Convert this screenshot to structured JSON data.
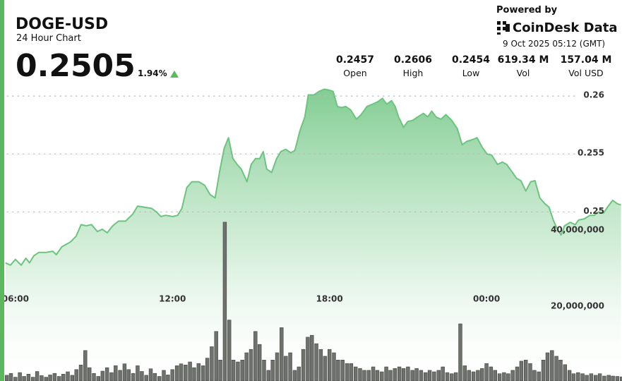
{
  "header": {
    "price": "0.2505",
    "change": "1.94%",
    "powered_by": "Powered by",
    "brand": "CoinDesk Data",
    "timestamp": "9 Oct 2025 05:12 (GMT)",
    "stats": [
      {
        "value": "0.2457",
        "label": "Open"
      },
      {
        "value": "0.2606",
        "label": "High"
      },
      {
        "value": "0.2454",
        "label": "Low"
      },
      {
        "value": "619.34 M",
        "label": "Vol"
      },
      {
        "value": "157.04 M",
        "label": "Vol USD"
      }
    ]
  },
  "chart_data": {
    "type": "line",
    "title": "DOGE-USD",
    "subtitle": "24 Hour Chart",
    "color": "#6cc47f",
    "grid": true,
    "x": [
      5.62,
      5.81,
      6.0,
      6.22,
      6.4,
      6.54,
      6.7,
      6.89,
      7.16,
      7.43,
      7.56,
      7.78,
      8.1,
      8.32,
      8.51,
      8.7,
      8.91,
      9.13,
      9.32,
      9.51,
      9.72,
      9.94,
      10.21,
      10.48,
      10.67,
      10.94,
      11.21,
      11.39,
      11.56,
      11.74,
      12.01,
      12.2,
      12.36,
      12.55,
      12.74,
      13.01,
      13.23,
      13.44,
      13.63,
      13.82,
      13.98,
      14.14,
      14.31,
      14.47,
      14.63,
      14.85,
      15.01,
      15.17,
      15.33,
      15.47,
      15.6,
      15.79,
      15.98,
      16.14,
      16.33,
      16.52,
      16.68,
      16.87,
      17.06,
      17.19,
      17.41,
      17.6,
      17.81,
      18.0,
      18.14,
      18.3,
      18.46,
      18.62,
      18.81,
      19.03,
      19.21,
      19.43,
      19.65,
      19.84,
      20.02,
      20.19,
      20.37,
      20.51,
      20.64,
      20.83,
      20.99,
      21.18,
      21.37,
      21.59,
      21.75,
      21.91,
      22.07,
      22.26,
      22.45,
      22.67,
      22.88,
      23.07,
      23.26,
      23.42,
      23.64,
      23.83,
      24.02,
      24.2,
      24.42,
      24.61,
      24.77,
      24.96,
      25.15,
      25.31,
      25.5,
      25.69,
      25.85,
      26.04,
      26.23,
      26.39,
      26.55,
      26.71,
      26.85,
      26.98,
      27.2,
      27.39,
      27.52,
      27.74,
      27.95,
      28.12,
      28.28,
      28.47,
      28.65,
      28.82,
      29.0,
      29.14
    ],
    "values": [
      0.2456,
      0.2454,
      0.2459,
      0.2454,
      0.246,
      0.2456,
      0.2462,
      0.2465,
      0.2465,
      0.2466,
      0.2463,
      0.247,
      0.2474,
      0.2479,
      0.2489,
      0.2488,
      0.2489,
      0.2483,
      0.2485,
      0.2482,
      0.2488,
      0.2492,
      0.2492,
      0.2498,
      0.2505,
      0.2504,
      0.2503,
      0.25,
      0.2496,
      0.2497,
      0.2496,
      0.2497,
      0.2503,
      0.2521,
      0.2526,
      0.2526,
      0.2523,
      0.2515,
      0.2512,
      0.2537,
      0.2555,
      0.2564,
      0.2546,
      0.2541,
      0.2537,
      0.2526,
      0.2541,
      0.2546,
      0.2546,
      0.2552,
      0.2537,
      0.2534,
      0.2546,
      0.2552,
      0.2554,
      0.2551,
      0.2553,
      0.257,
      0.2582,
      0.2601,
      0.2601,
      0.2604,
      0.2606,
      0.2605,
      0.2604,
      0.2591,
      0.259,
      0.2591,
      0.2588,
      0.258,
      0.2584,
      0.2591,
      0.2593,
      0.2595,
      0.2598,
      0.2593,
      0.2596,
      0.2591,
      0.2582,
      0.2573,
      0.2578,
      0.2579,
      0.2582,
      0.2585,
      0.2582,
      0.2587,
      0.2582,
      0.258,
      0.2584,
      0.2579,
      0.2572,
      0.2558,
      0.2561,
      0.2562,
      0.2564,
      0.2556,
      0.255,
      0.2549,
      0.2541,
      0.2543,
      0.2541,
      0.2535,
      0.2529,
      0.2527,
      0.2518,
      0.2526,
      0.2527,
      0.2512,
      0.2507,
      0.2504,
      0.2493,
      0.2485,
      0.248,
      0.2488,
      0.2491,
      0.2489,
      0.2493,
      0.2494,
      0.2497,
      0.2497,
      0.25,
      0.2499,
      0.2505,
      0.251,
      0.2507,
      0.2506
    ],
    "xlim": [
      5.6,
      29.15
    ],
    "xticks": [
      {
        "value": 6,
        "label": "06:00"
      },
      {
        "value": 12,
        "label": "12:00"
      },
      {
        "value": 18,
        "label": "18:00"
      },
      {
        "value": 24,
        "label": "00:00"
      }
    ],
    "ylim": [
      0.2354,
      0.2622
    ],
    "yticks": [
      0.25,
      0.255,
      0.26
    ],
    "y2lim": [
      0,
      81500000
    ],
    "y2ticks": [
      {
        "value": 20000000,
        "label": "20,000,000"
      },
      {
        "value": 40000000,
        "label": "40,000,000"
      }
    ],
    "volume": {
      "axis": "y2",
      "color": "#6e726d",
      "x": [
        5.67,
        5.83,
        6,
        6.17,
        6.33,
        6.5,
        6.67,
        6.83,
        7,
        7.17,
        7.33,
        7.5,
        7.67,
        7.83,
        8,
        8.17,
        8.33,
        8.5,
        8.67,
        8.83,
        9,
        9.17,
        9.33,
        9.5,
        9.67,
        9.83,
        10,
        10.17,
        10.33,
        10.5,
        10.67,
        10.83,
        11,
        11.17,
        11.33,
        11.5,
        11.67,
        11.83,
        12,
        12.17,
        12.33,
        12.5,
        12.67,
        12.83,
        13,
        13.17,
        13.33,
        13.5,
        13.67,
        13.83,
        14,
        14.17,
        14.33,
        14.5,
        14.67,
        14.83,
        15,
        15.17,
        15.33,
        15.5,
        15.67,
        15.83,
        16,
        16.17,
        16.33,
        16.5,
        16.67,
        16.83,
        17,
        17.17,
        17.33,
        17.5,
        17.67,
        17.83,
        18,
        18.17,
        18.33,
        18.5,
        18.67,
        18.83,
        19,
        19.17,
        19.33,
        19.5,
        19.67,
        19.83,
        20,
        20.17,
        20.33,
        20.5,
        20.67,
        20.83,
        21,
        21.17,
        21.33,
        21.5,
        21.67,
        21.83,
        22,
        22.17,
        22.33,
        22.5,
        22.67,
        22.83,
        23,
        23.17,
        23.33,
        23.5,
        23.67,
        23.83,
        24,
        24.17,
        24.33,
        24.5,
        24.67,
        24.83,
        25,
        25.17,
        25.33,
        25.5,
        25.67,
        25.83,
        26,
        26.17,
        26.33,
        26.5,
        26.67,
        26.83,
        27,
        27.17,
        27.33,
        27.5,
        27.67,
        27.83,
        28,
        28.17,
        28.33,
        28.5,
        28.67,
        28.83,
        29,
        29.17
      ],
      "values": [
        1500000,
        2000000,
        1000000,
        2200000,
        1200000,
        1800000,
        1000000,
        2500000,
        1400000,
        1000000,
        1600000,
        2000000,
        1200000,
        1800000,
        2400000,
        1500000,
        3000000,
        4200000,
        8000000,
        3500000,
        2000000,
        1200000,
        2600000,
        3500000,
        2200000,
        4000000,
        2800000,
        4500000,
        3000000,
        2000000,
        4000000,
        2500000,
        1500000,
        3200000,
        2000000,
        1200000,
        2800000,
        1600000,
        3000000,
        4000000,
        4500000,
        4200000,
        5000000,
        3500000,
        4600000,
        4000000,
        6000000,
        9000000,
        13000000,
        5500000,
        41700000,
        16000000,
        5500000,
        5000000,
        5500000,
        7400000,
        8300000,
        13000000,
        9600000,
        5500000,
        2800000,
        5500000,
        7400000,
        14000000,
        6500000,
        7400000,
        2800000,
        3700000,
        8300000,
        11500000,
        12000000,
        9800000,
        8300000,
        6500000,
        8300000,
        7400000,
        5500000,
        5500000,
        4600000,
        4600000,
        3700000,
        3300000,
        2800000,
        2800000,
        3700000,
        2800000,
        2400000,
        3700000,
        2800000,
        3300000,
        3700000,
        3300000,
        3700000,
        2800000,
        3300000,
        2800000,
        2200000,
        2800000,
        2400000,
        2800000,
        3700000,
        2200000,
        1900000,
        2200000,
        15000000,
        4000000,
        2800000,
        2400000,
        2800000,
        3300000,
        4600000,
        3700000,
        2800000,
        1900000,
        2200000,
        1900000,
        2800000,
        3700000,
        5200000,
        5500000,
        4600000,
        2800000,
        2400000,
        5500000,
        7400000,
        8000000,
        6500000,
        5500000,
        4300000,
        2800000,
        1900000,
        2200000,
        1900000,
        1500000,
        1900000,
        1500000,
        1900000,
        1300000,
        1500000,
        1300000,
        1200000,
        1100000
      ]
    }
  }
}
